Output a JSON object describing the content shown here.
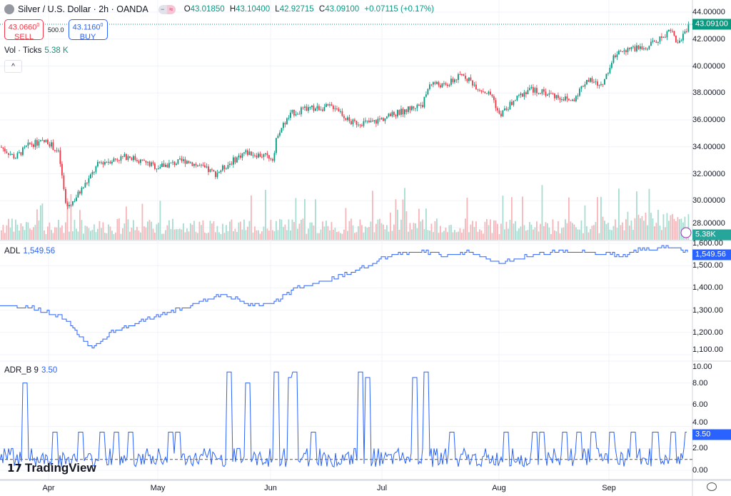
{
  "header": {
    "title": "Silver / U.S. Dollar · 2h · OANDA",
    "open_label": "O",
    "open": "43.01850",
    "high_label": "H",
    "high": "43.10400",
    "low_label": "L",
    "low": "42.92715",
    "close_label": "C",
    "close": "43.09100",
    "change": "+0.07115 (+0.17%)"
  },
  "trade": {
    "sell_price": "43.0660",
    "sell_sup": "0",
    "sell_label": "SELL",
    "qty": "500.0",
    "buy_price": "43.1160",
    "buy_sup": "0",
    "buy_label": "BUY"
  },
  "volume": {
    "label": "Vol · Ticks",
    "value": "5.38 K",
    "tag": "5.38K"
  },
  "adl": {
    "label": "ADL",
    "value": "1,549.56"
  },
  "adr": {
    "label": "ADR_B 9",
    "value": "3.50"
  },
  "price_tag": "43.09100",
  "branding": "TradingView",
  "colors": {
    "up": "#089981",
    "down": "#f23645",
    "line": "#2962ff"
  },
  "chart_data": [
    {
      "type": "candlestick",
      "title": "Silver / U.S. Dollar",
      "x_unit": "days since Mar 18",
      "ylim": [
        27,
        44.5
      ],
      "y_ticks": [
        "44.00000",
        "42.00000",
        "40.00000",
        "38.00000",
        "36.00000",
        "34.00000",
        "32.00000",
        "30.00000",
        "28.00000"
      ],
      "points": [
        [
          0,
          34
        ],
        [
          4,
          33.2
        ],
        [
          8,
          34.2
        ],
        [
          13,
          34.4
        ],
        [
          16,
          33.5
        ],
        [
          18,
          29.5
        ],
        [
          20,
          30
        ],
        [
          24,
          31.5
        ],
        [
          27,
          32.8
        ],
        [
          35,
          33.3
        ],
        [
          43,
          32.5
        ],
        [
          51,
          33
        ],
        [
          59,
          32
        ],
        [
          67,
          33.6
        ],
        [
          75,
          33.2
        ],
        [
          76,
          35
        ],
        [
          80,
          36.5
        ],
        [
          84,
          36.8
        ],
        [
          92,
          37
        ],
        [
          96,
          35.8
        ],
        [
          102,
          35.8
        ],
        [
          110,
          36.6
        ],
        [
          116,
          37.2
        ],
        [
          118,
          38.8
        ],
        [
          122,
          38.5
        ],
        [
          127,
          39.4
        ],
        [
          131,
          38.4
        ],
        [
          135,
          37.8
        ],
        [
          137,
          36.3
        ],
        [
          141,
          37.4
        ],
        [
          145,
          38.3
        ],
        [
          151,
          37.9
        ],
        [
          157,
          37.4
        ],
        [
          161,
          39
        ],
        [
          165,
          38.5
        ],
        [
          169,
          41
        ],
        [
          173,
          41.4
        ],
        [
          176,
          41.2
        ],
        [
          182,
          42.2
        ],
        [
          184,
          42.8
        ],
        [
          186,
          41.6
        ],
        [
          189,
          43.09
        ]
      ]
    },
    {
      "type": "line",
      "title": "ADL",
      "ylim": [
        1080,
        1620
      ],
      "y_ticks": [
        "1,600.00",
        "1,500.00",
        "1,400.00",
        "1,300.00",
        "1,200.00",
        "1,100.00"
      ],
      "points": [
        [
          0,
          1320
        ],
        [
          8,
          1310
        ],
        [
          18,
          1260
        ],
        [
          22,
          1170
        ],
        [
          25,
          1130
        ],
        [
          31,
          1200
        ],
        [
          39,
          1250
        ],
        [
          51,
          1310
        ],
        [
          61,
          1370
        ],
        [
          69,
          1320
        ],
        [
          75,
          1330
        ],
        [
          82,
          1400
        ],
        [
          92,
          1440
        ],
        [
          100,
          1490
        ],
        [
          108,
          1550
        ],
        [
          116,
          1560
        ],
        [
          122,
          1540
        ],
        [
          129,
          1560
        ],
        [
          137,
          1510
        ],
        [
          145,
          1540
        ],
        [
          153,
          1560
        ],
        [
          161,
          1560
        ],
        [
          171,
          1540
        ],
        [
          176,
          1570
        ],
        [
          186,
          1580
        ],
        [
          189,
          1550
        ]
      ]
    },
    {
      "type": "line",
      "title": "ADR_B 9",
      "ylim": [
        0,
        10
      ],
      "baseline": 1,
      "y_ticks": [
        "10.00",
        "8.00",
        "6.00",
        "4.00",
        "2.00",
        "0.00"
      ],
      "spikes": [
        [
          7,
          8
        ],
        [
          15,
          3.5
        ],
        [
          22,
          3.5
        ],
        [
          28,
          3.5
        ],
        [
          32,
          3.5
        ],
        [
          36,
          3.5
        ],
        [
          47,
          3.5
        ],
        [
          49,
          3.5
        ],
        [
          63,
          9
        ],
        [
          68,
          8
        ],
        [
          76,
          9
        ],
        [
          80,
          8.5
        ],
        [
          81,
          9
        ],
        [
          86,
          3.5
        ],
        [
          99,
          9
        ],
        [
          101,
          8.5
        ],
        [
          114,
          8.5
        ],
        [
          117,
          9
        ],
        [
          124,
          3.5
        ],
        [
          139,
          3.5
        ],
        [
          147,
          3.5
        ],
        [
          149,
          3.5
        ],
        [
          155,
          3.5
        ],
        [
          159,
          3.5
        ],
        [
          163,
          3.5
        ],
        [
          168,
          3.5
        ],
        [
          174,
          3.5
        ],
        [
          180,
          3.5
        ],
        [
          185,
          3.5
        ],
        [
          189,
          3.5
        ]
      ]
    }
  ],
  "time_axis": [
    "Apr",
    "May",
    "Jun",
    "Jul",
    "Aug",
    "Sep"
  ]
}
